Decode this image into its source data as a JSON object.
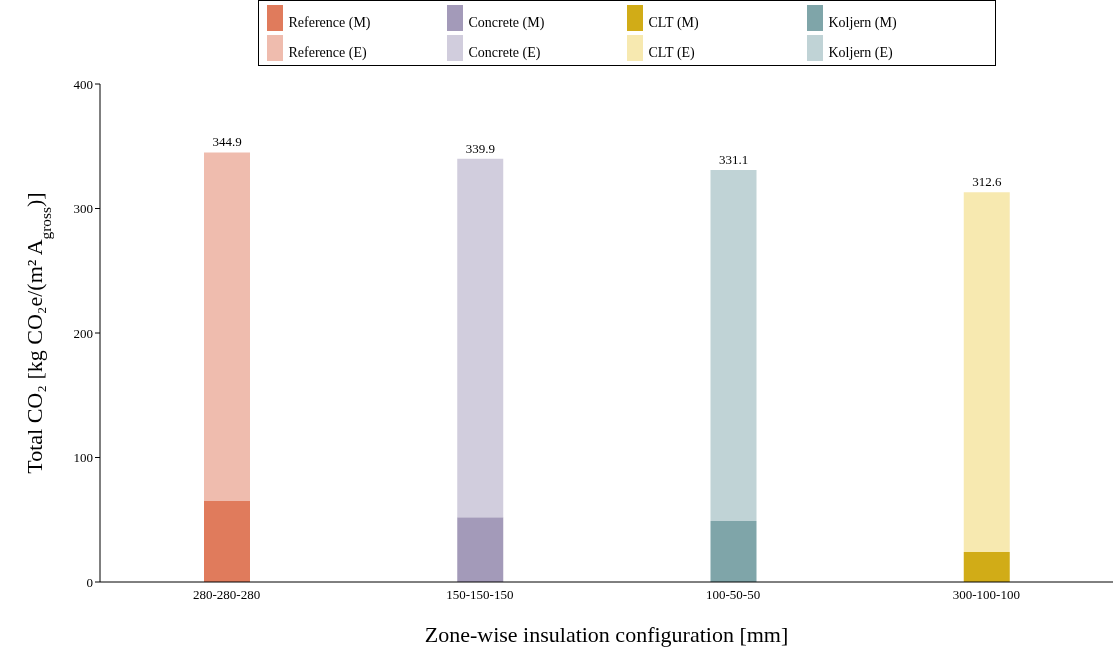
{
  "chart_data": {
    "type": "bar",
    "stacked": true,
    "xlabel": "Zone-wise insulation configuration [mm]",
    "ylabel": "Total CO₂ [kg CO₂e/(m² A$_{gross}$)]",
    "categories": [
      "280-280-280",
      "150-150-150",
      "100-50-50",
      "300-100-100"
    ],
    "series": [
      {
        "name": "Reference (M)",
        "color": "#e07b5c",
        "values": [
          65,
          null,
          null,
          null
        ]
      },
      {
        "name": "Concrete (M)",
        "color": "#a39ab9",
        "values": [
          null,
          52,
          null,
          null
        ]
      },
      {
        "name": "CLT (M)",
        "color": "#d1ac17",
        "values": [
          null,
          null,
          null,
          24
        ]
      },
      {
        "name": "Koljern (M)",
        "color": "#7fa5a9",
        "values": [
          null,
          null,
          49,
          null
        ]
      },
      {
        "name": "Reference (E)",
        "color": "#efbcae",
        "values": [
          280,
          null,
          null,
          null
        ]
      },
      {
        "name": "Concrete (E)",
        "color": "#d1cddd",
        "values": [
          null,
          288,
          null,
          null
        ]
      },
      {
        "name": "CLT (E)",
        "color": "#f7e9b0",
        "values": [
          null,
          null,
          null,
          289
        ]
      },
      {
        "name": "Koljern (E)",
        "color": "#c0d3d6",
        "values": [
          null,
          null,
          282,
          null
        ]
      }
    ],
    "totals": [
      "344.9",
      "339.9",
      "331.1",
      "312.6"
    ],
    "ylim": [
      0,
      400
    ],
    "yticks": [
      0,
      100,
      200,
      300,
      400
    ],
    "grid": false,
    "legend": "top"
  }
}
